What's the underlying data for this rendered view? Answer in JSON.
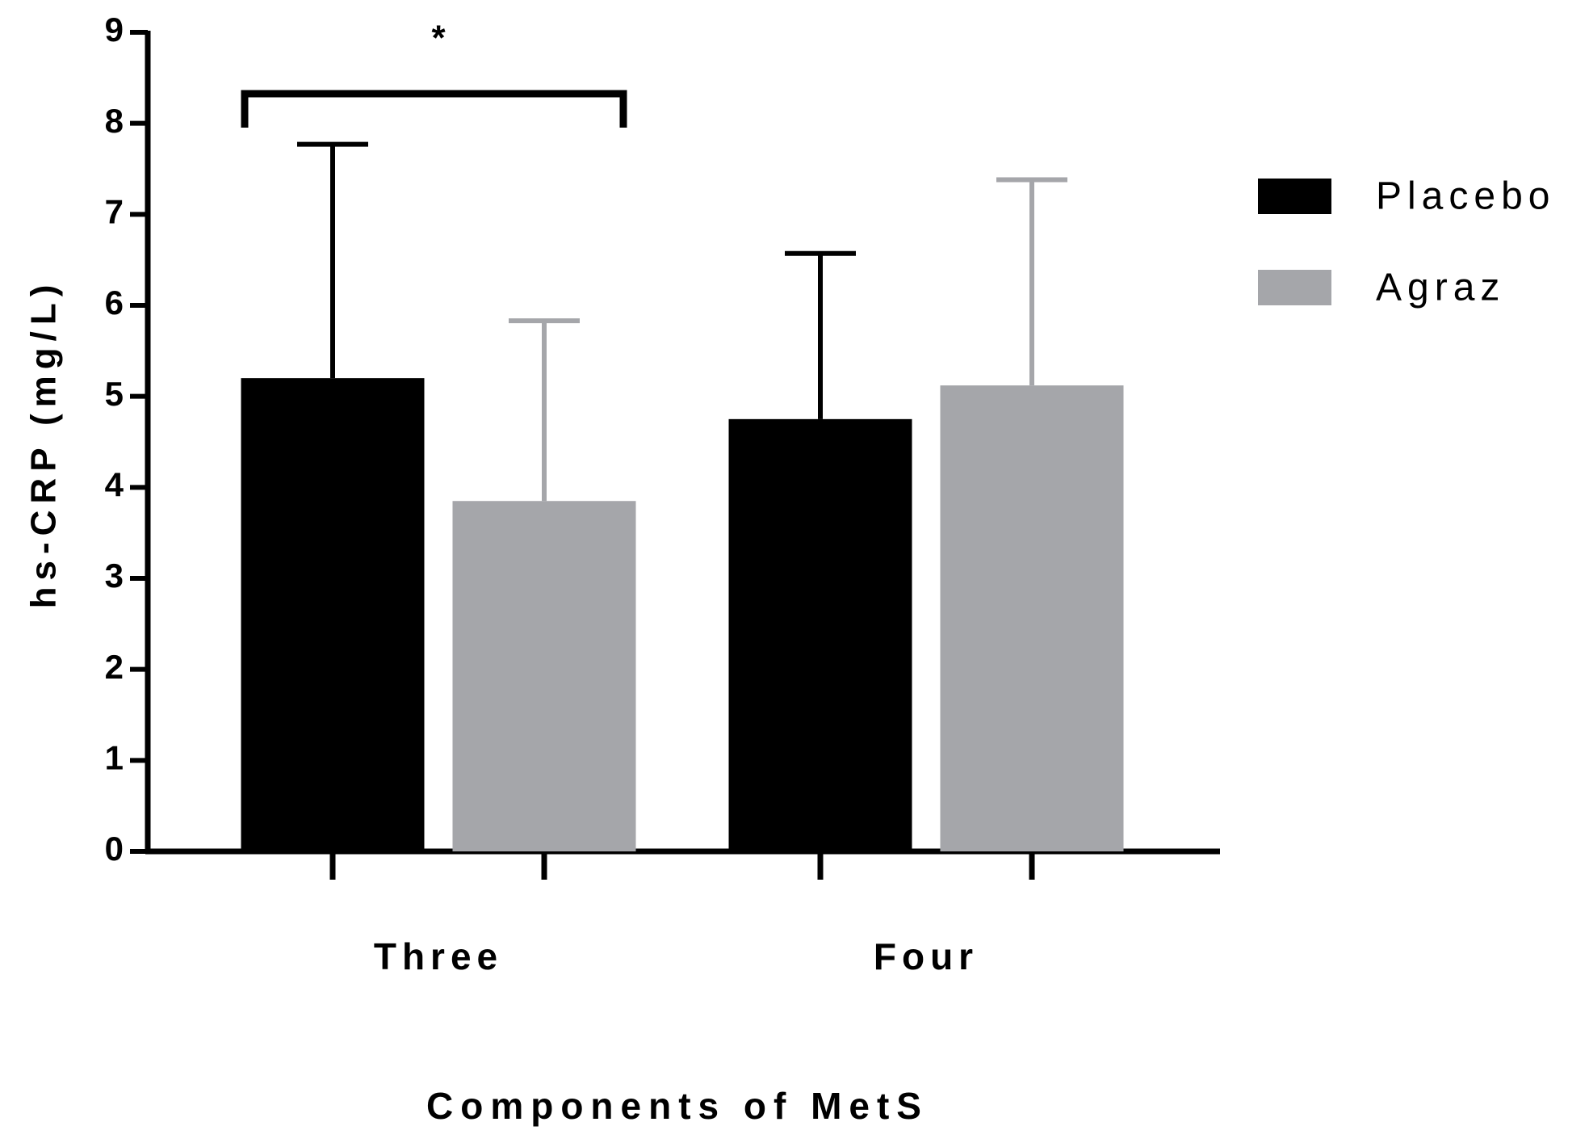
{
  "chart_data": {
    "type": "bar",
    "categories": [
      "Three",
      "Four"
    ],
    "series": [
      {
        "name": "Placebo",
        "color": "#000000",
        "values": [
          5.2,
          4.75
        ],
        "errors": [
          2.57,
          1.82
        ]
      },
      {
        "name": "Agraz",
        "color": "#a5a6aa",
        "values": [
          3.85,
          5.12
        ],
        "errors": [
          1.98,
          2.26
        ]
      }
    ],
    "ylabel": "hs-CRP (mg/L)",
    "xlabel": "Components of MetS",
    "annotation": "*",
    "ylim": [
      0,
      9
    ],
    "yticks": [
      0,
      1,
      2,
      3,
      4,
      5,
      6,
      7,
      8,
      9
    ],
    "legend": "right"
  }
}
